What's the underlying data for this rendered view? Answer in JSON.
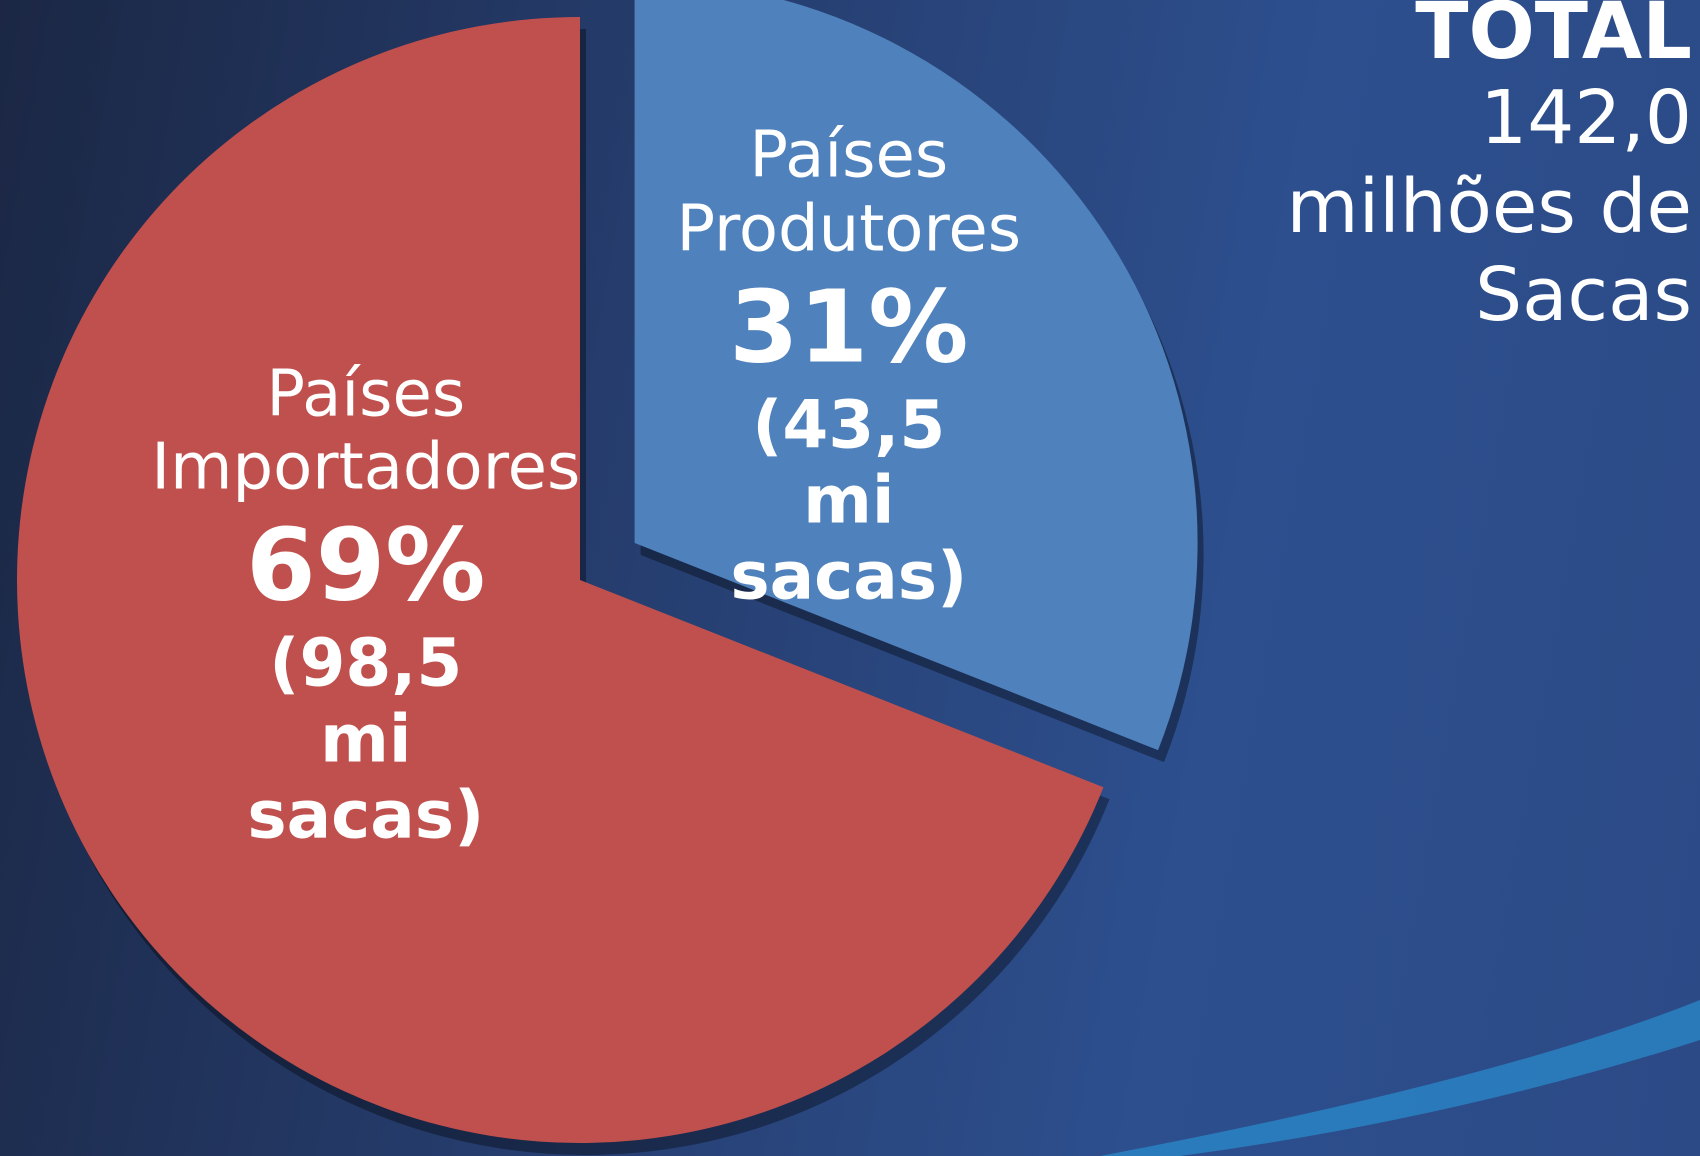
{
  "chart_data": {
    "type": "pie",
    "categories": [
      "Países Produtores",
      "Países Importadores"
    ],
    "values": [
      31,
      69
    ],
    "value_labels": [
      "31%",
      "69%"
    ],
    "value_details": [
      "(43,5 mi sacas)",
      "(98,5 mi sacas)"
    ],
    "colors": [
      "#4f81bd",
      "#c0504d"
    ],
    "exploded": [
      true,
      false
    ],
    "total_label": "TOTAL",
    "total_text": "142,0 milhões de Sacas"
  }
}
